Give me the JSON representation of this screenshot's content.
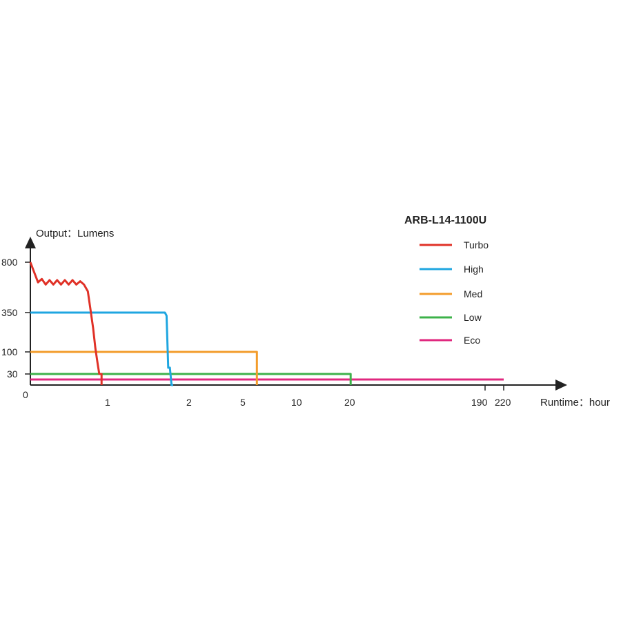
{
  "chart_data": {
    "type": "line",
    "title": "ARB-L14-1100U",
    "ylabel": "Output：Lumens",
    "xlabel": "Runtime：hour",
    "y_tick_labels": [
      "0",
      "30",
      "100",
      "350",
      "800"
    ],
    "x_tick_labels": [
      "1",
      "2",
      "5",
      "10",
      "20",
      "190",
      "220"
    ],
    "legend_position": "top-right",
    "grid": false,
    "series": [
      {
        "name": "Turbo",
        "color": "#e03127",
        "x": [
          0,
          0.1,
          0.15,
          0.2,
          0.25,
          0.3,
          0.35,
          0.4,
          0.45,
          0.5,
          0.55,
          0.6,
          0.65,
          0.7,
          0.75,
          0.78,
          0.82,
          0.85,
          0.88,
          0.9,
          0.92,
          0.93,
          0.93
        ],
        "y": [
          800,
          620,
          650,
          600,
          640,
          600,
          640,
          600,
          640,
          600,
          640,
          600,
          630,
          600,
          540,
          400,
          250,
          120,
          60,
          30,
          30,
          30,
          0
        ]
      },
      {
        "name": "High",
        "color": "#1fa6e0",
        "x": [
          0,
          1.7,
          1.72,
          1.74,
          1.76,
          1.78,
          1.8,
          1.8
        ],
        "y": [
          350,
          350,
          330,
          50,
          50,
          0,
          0,
          0
        ]
      },
      {
        "name": "Med",
        "color": "#f39c2b",
        "x": [
          0,
          6.3,
          6.3
        ],
        "y": [
          100,
          100,
          0
        ]
      },
      {
        "name": "Low",
        "color": "#3db24a",
        "x": [
          0,
          21,
          21
        ],
        "y": [
          30,
          30,
          0
        ]
      },
      {
        "name": "Eco",
        "color": "#e0287f",
        "x": [
          0,
          220
        ],
        "y": [
          15,
          15
        ]
      }
    ]
  }
}
